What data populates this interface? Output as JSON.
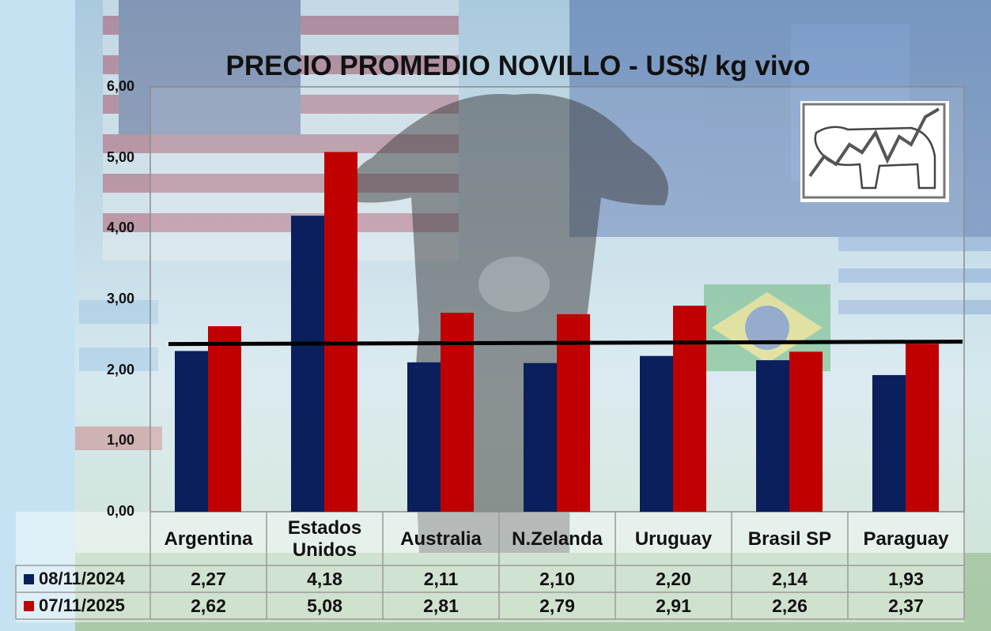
{
  "chart_data": {
    "type": "bar",
    "title": "PRECIO PROMEDIO NOVILLO  - US$/ kg vivo",
    "categories": [
      "Argentina",
      "Estados Unidos",
      "Australia",
      "N.Zelanda",
      "Uruguay",
      "Brasil SP",
      "Paraguay"
    ],
    "series": [
      {
        "name": "08/11/2024",
        "values": [
          2.27,
          4.18,
          2.11,
          2.1,
          2.2,
          2.14,
          1.93
        ],
        "labels": [
          "2,27",
          "4,18",
          "2,11",
          "2,10",
          "2,20",
          "2,14",
          "1,93"
        ]
      },
      {
        "name": "07/11/2025",
        "values": [
          2.62,
          5.08,
          2.81,
          2.79,
          2.91,
          2.26,
          2.37
        ],
        "labels": [
          "2,62",
          "5,08",
          "2,81",
          "2,79",
          "2,91",
          "2,26",
          "2,37"
        ]
      }
    ],
    "reference_line": 2.38,
    "ylim": [
      0,
      6
    ],
    "yticks": [
      "0,00",
      "1,00",
      "2,00",
      "3,00",
      "4,00",
      "5,00",
      "6,00"
    ],
    "legend": "table-below",
    "colors": {
      "series1": "#0a1f5c",
      "series2": "#c00000",
      "line": "#000000"
    }
  }
}
